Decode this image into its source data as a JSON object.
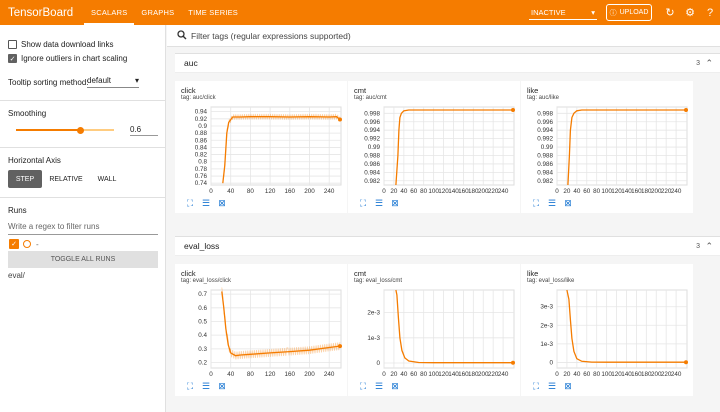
{
  "header": {
    "brand": "TensorBoard",
    "tabs": [
      "SCALARS",
      "GRAPHS",
      "TIME SERIES"
    ],
    "status_select": "INACTIVE",
    "upload_label": "UPLOAD",
    "accent": "#f57c00"
  },
  "sidebar": {
    "show_download_links": "Show data download links",
    "ignore_outliers": "Ignore outliers in chart scaling",
    "tooltip_sorting_label": "Tooltip sorting method:",
    "tooltip_sorting_value": "default",
    "smoothing_label": "Smoothing",
    "smoothing_value": "0.6",
    "smoothing_fraction": 0.6,
    "horizontal_axis_label": "Horizontal Axis",
    "axis_options": [
      "STEP",
      "RELATIVE",
      "WALL"
    ],
    "runs_label": "Runs",
    "runs_filter_placeholder": "Write a regex to filter runs",
    "run_dash": "-",
    "toggle_all_runs": "TOGGLE ALL RUNS",
    "run_name": "eval/"
  },
  "main": {
    "filter_placeholder": "Filter tags (regular expressions supported)",
    "groups": [
      {
        "name": "auc",
        "count": "3"
      },
      {
        "name": "eval_loss",
        "count": "3"
      }
    ]
  },
  "chart_data": [
    {
      "type": "line",
      "title": "click",
      "tag": "tag: auc/click",
      "x_ticks": [
        "0",
        "40",
        "80",
        "120",
        "160",
        "200",
        "240"
      ],
      "y_ticks": [
        "0.74",
        "0.76",
        "0.78",
        "0.8",
        "0.82",
        "0.84",
        "0.86",
        "0.88",
        "0.9",
        "0.92",
        "0.94"
      ],
      "xlim": [
        0,
        264
      ],
      "ylim": [
        0.735,
        0.953
      ],
      "series": [
        {
          "x": [
            24,
            28,
            32,
            36,
            44,
            60,
            80,
            120,
            160,
            200,
            240,
            255,
            262
          ],
          "y": [
            0.74,
            0.79,
            0.88,
            0.91,
            0.925,
            0.925,
            0.926,
            0.926,
            0.925,
            0.926,
            0.925,
            0.926,
            0.918
          ]
        }
      ]
    },
    {
      "type": "line",
      "title": "cmt",
      "tag": "tag: auc/cmt",
      "x_ticks": [
        "0",
        "20",
        "40",
        "60",
        "80",
        "100",
        "120",
        "140",
        "160",
        "180",
        "200",
        "220",
        "240"
      ],
      "y_ticks": [
        "0.982",
        "0.984",
        "0.986",
        "0.988",
        "0.99",
        "0.992",
        "0.994",
        "0.996",
        "0.998"
      ],
      "xlim": [
        0,
        262
      ],
      "ylim": [
        0.981,
        0.9995
      ],
      "series": [
        {
          "x": [
            24,
            28,
            30,
            32,
            35,
            40,
            50,
            80,
            160,
            240,
            260
          ],
          "y": [
            0.981,
            0.988,
            0.994,
            0.997,
            0.998,
            0.9986,
            0.9988,
            0.9988,
            0.9988,
            0.9988,
            0.9988
          ]
        }
      ]
    },
    {
      "type": "line",
      "title": "like",
      "tag": "tag: auc/like",
      "x_ticks": [
        "0",
        "20",
        "40",
        "60",
        "80",
        "100",
        "120",
        "140",
        "160",
        "180",
        "200",
        "220",
        "240"
      ],
      "y_ticks": [
        "0.982",
        "0.984",
        "0.986",
        "0.988",
        "0.99",
        "0.992",
        "0.994",
        "0.996",
        "0.998"
      ],
      "xlim": [
        0,
        262
      ],
      "ylim": [
        0.981,
        0.9995
      ],
      "series": [
        {
          "x": [
            22,
            25,
            27,
            30,
            34,
            40,
            50,
            80,
            160,
            240,
            260
          ],
          "y": [
            0.981,
            0.988,
            0.994,
            0.997,
            0.998,
            0.9986,
            0.9988,
            0.9988,
            0.9988,
            0.9988,
            0.9988
          ]
        }
      ]
    },
    {
      "type": "line",
      "title": "click",
      "tag": "tag: eval_loss/click",
      "x_ticks": [
        "0",
        "40",
        "80",
        "120",
        "160",
        "200",
        "240"
      ],
      "y_ticks": [
        "0.2",
        "0.3",
        "0.4",
        "0.5",
        "0.6",
        "0.7"
      ],
      "xlim": [
        0,
        264
      ],
      "ylim": [
        0.16,
        0.73
      ],
      "series": [
        {
          "x": [
            22,
            26,
            30,
            35,
            40,
            50,
            60,
            80,
            120,
            160,
            200,
            240,
            262
          ],
          "y": [
            0.72,
            0.6,
            0.45,
            0.33,
            0.27,
            0.25,
            0.255,
            0.26,
            0.27,
            0.28,
            0.29,
            0.31,
            0.32
          ]
        }
      ]
    },
    {
      "type": "line",
      "title": "cmt",
      "tag": "tag: eval_loss/cmt",
      "x_ticks": [
        "0",
        "20",
        "40",
        "60",
        "80",
        "100",
        "120",
        "140",
        "160",
        "180",
        "200",
        "220",
        "240"
      ],
      "y_ticks": [
        "0",
        "1e-3",
        "2e-3"
      ],
      "xlim": [
        0,
        262
      ],
      "ylim": [
        -0.0002,
        0.0029
      ],
      "series": [
        {
          "x": [
            24,
            26,
            29,
            32,
            36,
            42,
            50,
            70,
            100,
            160,
            240,
            260
          ],
          "y": [
            0.0029,
            0.0027,
            0.0018,
            0.001,
            0.0005,
            0.0002,
            8e-05,
            2e-05,
            1e-05,
            1e-05,
            1e-05,
            1e-05
          ]
        }
      ]
    },
    {
      "type": "line",
      "title": "like",
      "tag": "tag: eval_loss/like",
      "x_ticks": [
        "0",
        "20",
        "40",
        "60",
        "80",
        "100",
        "120",
        "140",
        "160",
        "180",
        "200",
        "220",
        "240"
      ],
      "y_ticks": [
        "0",
        "1e-3",
        "2e-3",
        "3e-3"
      ],
      "xlim": [
        0,
        262
      ],
      "ylim": [
        -0.0003,
        0.0039
      ],
      "series": [
        {
          "x": [
            20,
            24,
            27,
            30,
            34,
            40,
            50,
            70,
            100,
            160,
            240,
            260
          ],
          "y": [
            0.0039,
            0.0034,
            0.0023,
            0.0013,
            0.0006,
            0.0002,
            6e-05,
            2e-05,
            1e-05,
            1e-05,
            1e-05,
            1e-05
          ]
        }
      ]
    }
  ]
}
